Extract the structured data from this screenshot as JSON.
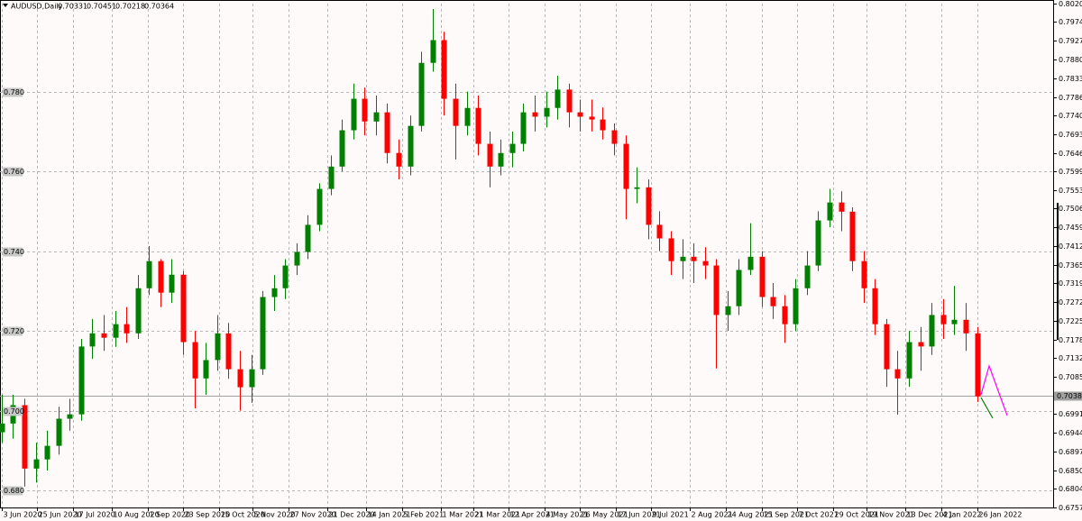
{
  "chart_data": {
    "type": "candlestick",
    "title": "AUDUSD,Daily",
    "ohlc": [
      0.70331,
      0.70451,
      0.70218,
      0.70364
    ],
    "x": [
      "2020-06-03",
      "2020-06-10",
      "2020-06-17",
      "2020-06-24",
      "2020-07-01",
      "2020-07-08",
      "2020-07-15",
      "2020-07-22",
      "2020-07-29",
      "2020-08-05",
      "2020-08-12",
      "2020-08-19",
      "2020-08-26",
      "2020-09-02",
      "2020-09-09",
      "2020-09-16",
      "2020-09-23",
      "2020-09-30",
      "2020-10-07",
      "2020-10-14",
      "2020-10-21",
      "2020-10-28",
      "2020-11-04",
      "2020-11-11",
      "2020-11-18",
      "2020-11-25",
      "2020-12-02",
      "2020-12-09",
      "2020-12-16",
      "2020-12-23",
      "2020-12-30",
      "2021-01-06",
      "2021-01-13",
      "2021-01-20",
      "2021-01-27",
      "2021-02-03",
      "2021-02-10",
      "2021-02-17",
      "2021-02-24",
      "2021-03-03",
      "2021-03-10",
      "2021-03-17",
      "2021-03-24",
      "2021-03-31",
      "2021-04-07",
      "2021-04-14",
      "2021-04-21",
      "2021-04-28",
      "2021-05-05",
      "2021-05-12",
      "2021-05-19",
      "2021-05-26",
      "2021-06-02",
      "2021-06-09",
      "2021-06-16",
      "2021-06-23",
      "2021-06-30",
      "2021-07-07",
      "2021-07-14",
      "2021-07-21",
      "2021-07-28",
      "2021-08-04",
      "2021-08-11",
      "2021-08-18",
      "2021-08-25",
      "2021-09-01",
      "2021-09-08",
      "2021-09-15",
      "2021-09-22",
      "2021-09-29",
      "2021-10-06",
      "2021-10-13",
      "2021-10-20",
      "2021-10-27",
      "2021-11-03",
      "2021-11-10",
      "2021-11-17",
      "2021-11-24",
      "2021-12-01",
      "2021-12-08",
      "2021-12-15",
      "2021-12-22",
      "2021-12-29",
      "2022-01-05",
      "2022-01-12",
      "2022-01-19",
      "2022-01-26"
    ],
    "open": [
      0.6946,
      0.6968,
      0.7014,
      0.6855,
      0.6878,
      0.6912,
      0.698,
      0.6991,
      0.7161,
      0.7194,
      0.7183,
      0.7217,
      0.7194,
      0.7307,
      0.7375,
      0.7296,
      0.7341,
      0.7172,
      0.7081,
      0.7127,
      0.7194,
      0.7104,
      0.7059,
      0.7104,
      0.7285,
      0.7307,
      0.7364,
      0.7398,
      0.7466,
      0.7556,
      0.7612,
      0.7703,
      0.7782,
      0.7725,
      0.7748,
      0.7646,
      0.7612,
      0.7714,
      0.7872,
      0.7929,
      0.7782,
      0.7714,
      0.7759,
      0.7669,
      0.7612,
      0.7646,
      0.7669,
      0.7748,
      0.7737,
      0.7759,
      0.7805,
      0.7748,
      0.7737,
      0.773,
      0.7703,
      0.7669,
      0.7556,
      0.756,
      0.7466,
      0.7432,
      0.7375,
      0.7386,
      0.7375,
      0.7364,
      0.724,
      0.7262,
      0.7353,
      0.7386,
      0.7285,
      0.7262,
      0.7217,
      0.7307,
      0.7364,
      0.7477,
      0.7522,
      0.7499,
      0.7375,
      0.7307,
      0.7217,
      0.7104,
      0.7081,
      0.7172,
      0.7161,
      0.724,
      0.7217,
      0.7228,
      0.7194
    ],
    "high": [
      0.704,
      0.704,
      0.703,
      0.692,
      0.695,
      0.701,
      0.703,
      0.718,
      0.723,
      0.724,
      0.725,
      0.726,
      0.734,
      0.7413,
      0.738,
      0.738,
      0.735,
      0.72,
      0.717,
      0.724,
      0.722,
      0.715,
      0.714,
      0.73,
      0.734,
      0.738,
      0.742,
      0.749,
      0.757,
      0.764,
      0.773,
      0.782,
      0.781,
      0.779,
      0.777,
      0.768,
      0.774,
      0.79,
      0.8007,
      0.795,
      0.782,
      0.78,
      0.779,
      0.77,
      0.768,
      0.77,
      0.777,
      0.779,
      0.78,
      0.784,
      0.782,
      0.778,
      0.778,
      0.776,
      0.772,
      0.769,
      0.761,
      0.758,
      0.75,
      0.745,
      0.743,
      0.742,
      0.741,
      0.738,
      0.73,
      0.738,
      0.747,
      0.74,
      0.732,
      0.729,
      0.733,
      0.74,
      0.75,
      0.7556,
      0.755,
      0.751,
      0.74,
      0.733,
      0.723,
      0.715,
      0.72,
      0.721,
      0.727,
      0.728,
      0.7313,
      0.727,
      0.721
    ],
    "low": [
      0.692,
      0.693,
      0.681,
      0.682,
      0.685,
      0.689,
      0.695,
      0.6975,
      0.713,
      0.715,
      0.716,
      0.717,
      0.718,
      0.729,
      0.726,
      0.727,
      0.714,
      0.7006,
      0.704,
      0.71,
      0.708,
      0.7,
      0.702,
      0.709,
      0.725,
      0.728,
      0.734,
      0.738,
      0.745,
      0.754,
      0.76,
      0.768,
      0.769,
      0.769,
      0.762,
      0.758,
      0.759,
      0.77,
      0.785,
      0.774,
      0.763,
      0.769,
      0.764,
      0.756,
      0.759,
      0.761,
      0.765,
      0.77,
      0.771,
      0.773,
      0.771,
      0.77,
      0.77,
      0.768,
      0.764,
      0.748,
      0.752,
      0.743,
      0.74,
      0.734,
      0.733,
      0.732,
      0.733,
      0.7106,
      0.72,
      0.724,
      0.734,
      0.726,
      0.723,
      0.717,
      0.72,
      0.729,
      0.735,
      0.746,
      0.745,
      0.735,
      0.727,
      0.719,
      0.706,
      0.699,
      0.706,
      0.71,
      0.714,
      0.718,
      0.719,
      0.715,
      0.7022
    ],
    "close": [
      0.6968,
      0.7014,
      0.6855,
      0.6878,
      0.6912,
      0.698,
      0.6991,
      0.7161,
      0.7194,
      0.7183,
      0.7217,
      0.7194,
      0.7307,
      0.7375,
      0.7296,
      0.7341,
      0.7172,
      0.7081,
      0.7127,
      0.7194,
      0.7104,
      0.7059,
      0.7104,
      0.7285,
      0.7307,
      0.7364,
      0.7398,
      0.7466,
      0.7556,
      0.7612,
      0.7703,
      0.7782,
      0.7725,
      0.7748,
      0.7646,
      0.7612,
      0.7714,
      0.7872,
      0.7929,
      0.7782,
      0.7714,
      0.7759,
      0.7669,
      0.7612,
      0.7646,
      0.7669,
      0.7748,
      0.7737,
      0.7759,
      0.7805,
      0.7748,
      0.7737,
      0.773,
      0.7703,
      0.7669,
      0.7556,
      0.756,
      0.7466,
      0.7432,
      0.7375,
      0.7386,
      0.7375,
      0.7364,
      0.724,
      0.7262,
      0.7353,
      0.7386,
      0.7285,
      0.7262,
      0.7217,
      0.7307,
      0.7364,
      0.7477,
      0.7522,
      0.7499,
      0.7375,
      0.7307,
      0.7217,
      0.7104,
      0.7081,
      0.7172,
      0.7161,
      0.724,
      0.7217,
      0.7228,
      0.7194,
      0.7036
    ],
    "up_color": "#008000",
    "down_color": "#ff0000",
    "xlim": [
      "2020-06-02",
      "2022-03-14"
    ],
    "xticks": [
      {
        "value": "2020-06-03",
        "label": "3 Jun 2020"
      },
      {
        "value": "2020-06-25",
        "label": "25 Jun 2020"
      },
      {
        "value": "2020-07-17",
        "label": "17 Jul 2020"
      },
      {
        "value": "2020-08-10",
        "label": "10 Aug 2020"
      },
      {
        "value": "2020-09-01",
        "label": "1 Sep 2020"
      },
      {
        "value": "2020-09-23",
        "label": "23 Sep 2020"
      },
      {
        "value": "2020-10-15",
        "label": "15 Oct 2020"
      },
      {
        "value": "2020-11-05",
        "label": "5 Nov 2020"
      },
      {
        "value": "2020-11-27",
        "label": "27 Nov 2020"
      },
      {
        "value": "2020-12-21",
        "label": "21 Dec 2020"
      },
      {
        "value": "2021-01-14",
        "label": "14 Jan 2021"
      },
      {
        "value": "2021-02-05",
        "label": "5 Feb 2021"
      },
      {
        "value": "2021-03-01",
        "label": "1 Mar 2021"
      },
      {
        "value": "2021-03-21",
        "label": "21 Mar 2021"
      },
      {
        "value": "2021-04-12",
        "label": "12 Apr 2021"
      },
      {
        "value": "2021-05-04",
        "label": "4 May 2021"
      },
      {
        "value": "2021-05-26",
        "label": "26 May 2021"
      },
      {
        "value": "2021-06-17",
        "label": "17 Jun 2021"
      },
      {
        "value": "2021-07-09",
        "label": "9 Jul 2021"
      },
      {
        "value": "2021-08-02",
        "label": "2 Aug 2021"
      },
      {
        "value": "2021-08-24",
        "label": "24 Aug 2021"
      },
      {
        "value": "2021-09-15",
        "label": "15 Sep 2021"
      },
      {
        "value": "2021-10-07",
        "label": "7 Oct 2021"
      },
      {
        "value": "2021-10-29",
        "label": "29 Oct 2021"
      },
      {
        "value": "2021-11-19",
        "label": "19 Nov 2021"
      },
      {
        "value": "2021-12-13",
        "label": "13 Dec 2021"
      },
      {
        "value": "2022-01-04",
        "label": "4 Jan 2022"
      },
      {
        "value": "2022-01-26",
        "label": "26 Jan 2022"
      }
    ],
    "ylim": [
      0.67575,
      0.80205
    ],
    "yticks": [
      0.80205,
      0.79745,
      0.79275,
      0.78805,
      0.78335,
      0.77865,
      0.77405,
      0.76935,
      0.76465,
      0.75995,
      0.75535,
      0.75065,
      0.74595,
      0.74125,
      0.73655,
      0.73195,
      0.72725,
      0.72255,
      0.71785,
      0.71325,
      0.70855,
      0.69915,
      0.69445,
      0.68975,
      0.68505,
      0.68045,
      0.67575
    ],
    "levels": [
      {
        "value": 0.78,
        "label": "0.780"
      },
      {
        "value": 0.76,
        "label": "0.760"
      },
      {
        "value": 0.74,
        "label": "0.740"
      },
      {
        "value": 0.72,
        "label": "0.720"
      },
      {
        "value": 0.7,
        "label": "0.700"
      },
      {
        "value": 0.68,
        "label": "0.680"
      }
    ],
    "current_price": 0.70383,
    "grid": true
  }
}
